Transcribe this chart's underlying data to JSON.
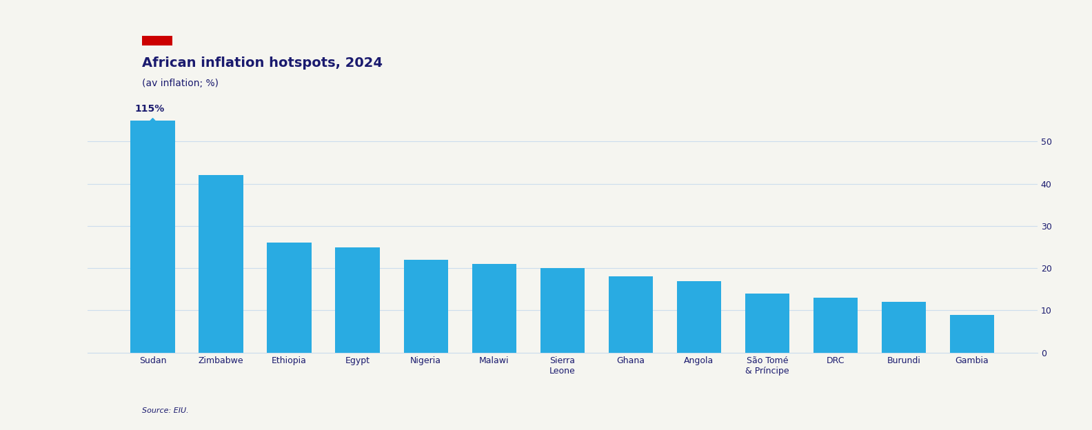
{
  "categories": [
    "Sudan",
    "Zimbabwe",
    "Ethiopia",
    "Egypt",
    "Nigeria",
    "Malawi",
    "Sierra\nLeone",
    "Ghana",
    "Angola",
    "São Tomé\n& Príncipe",
    "DRC",
    "Burundi",
    "Gambia"
  ],
  "values": [
    115,
    42,
    26,
    25,
    22,
    21,
    20,
    18,
    17,
    14,
    13,
    12,
    9
  ],
  "bar_color": "#29ABE2",
  "title": "African inflation hotspots, 2024",
  "subtitle": "(av inflation; %)",
  "annotation_label": "115%",
  "ylim": [
    0,
    55
  ],
  "yticks": [
    0,
    10,
    20,
    30,
    40,
    50
  ],
  "source": "Source: EIU.",
  "background_color": "#f5f5f0",
  "title_color": "#1a1a6e",
  "subtitle_color": "#1a1a6e",
  "axis_color": "#ccddee",
  "tick_label_color": "#1a1a6e",
  "red_patch_color": "#cc0000",
  "title_fontsize": 14,
  "subtitle_fontsize": 10,
  "tick_fontsize": 9,
  "source_fontsize": 8,
  "annotation_fontsize": 10
}
